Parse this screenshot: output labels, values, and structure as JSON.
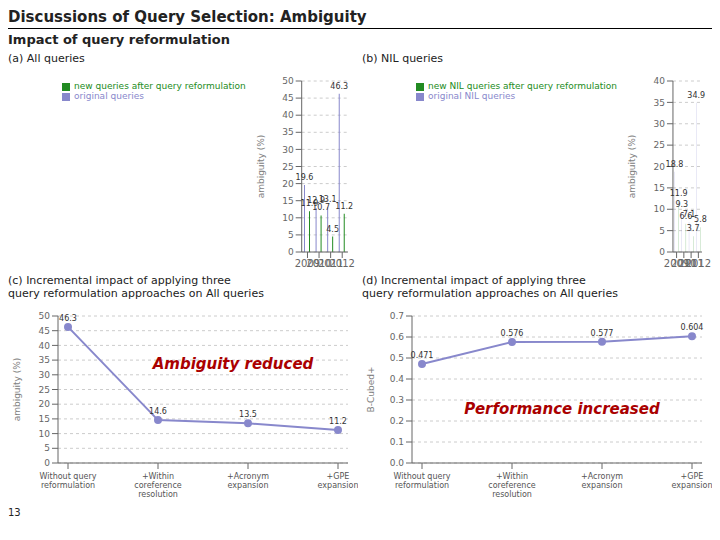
{
  "title": "Discussions of Query Selection: Ambiguity",
  "subtitle": "Impact of query reformulation",
  "annotations": [
    {
      "text": "13"
    }
  ],
  "chart_data": [
    {
      "type": "bar",
      "title": "(a) All queries",
      "categories": [
        "2009",
        "2010",
        "2011",
        "2012"
      ],
      "series": [
        {
          "name": "original queries",
          "color": "#8888CC",
          "values": [
            19.6,
            12.9,
            13.1,
            46.3
          ]
        },
        {
          "name": "new queries after query reformulation",
          "color": "#228B22",
          "values": [
            11.9,
            10.7,
            4.5,
            11.2
          ]
        }
      ],
      "y_label": "ambiguity (%)",
      "ylim": [
        0,
        50
      ],
      "yticks": [
        0,
        5,
        10,
        15,
        20,
        25,
        30,
        35,
        40,
        45,
        50
      ],
      "grid": true,
      "legend": "upper left",
      "data_labels": true
    },
    {
      "type": "bar",
      "title": "(b) NIL queries",
      "categories": [
        "2009",
        "2010",
        "2011",
        "2012"
      ],
      "series": [
        {
          "name": "original NIL queries",
          "color": "#8888CC",
          "values": [
            18.8,
            9.3,
            7.1,
            34.9
          ]
        },
        {
          "name": "new NIL queries after query reformulation",
          "color": "#228B22",
          "values": [
            11.9,
            6.6,
            3.7,
            5.8
          ]
        }
      ],
      "y_label": "ambiguity (%)",
      "ylim": [
        0,
        40
      ],
      "yticks": [
        0,
        5,
        10,
        15,
        20,
        25,
        30,
        35,
        40
      ],
      "grid": true,
      "legend": "upper left",
      "data_labels": true
    },
    {
      "type": "line",
      "title": "(c) Incremental impact of applying three\nquery reformulation approaches on All queries",
      "categories": [
        "Without query\nreformulation",
        "+Within\ncoreference\nresolution",
        "+Acronym\nexpansion",
        "+GPE\nexpansion"
      ],
      "values": [
        46.3,
        14.6,
        13.5,
        11.2
      ],
      "color": "#8888CC",
      "marker": "circle",
      "y_label": "ambiguity (%)",
      "ylim": [
        0,
        50
      ],
      "yticks": [
        0,
        5,
        10,
        15,
        20,
        25,
        30,
        35,
        40,
        45,
        50
      ],
      "grid": true,
      "data_labels": true,
      "annotations": [
        {
          "text": "Ambiguity reduced",
          "color": "#AA0000"
        }
      ]
    },
    {
      "type": "line",
      "title": "(d) Incremental impact of applying three\nquery reformulation approaches on All queries",
      "categories": [
        "Without query\nreformulation",
        "+Within\ncoreference\nresolution",
        "+Acronym\nexpansion",
        "+GPE\nexpansion"
      ],
      "values": [
        0.471,
        0.576,
        0.577,
        0.604
      ],
      "color": "#8888CC",
      "marker": "circle",
      "y_label": "B-Cubed+",
      "ylim": [
        0,
        0.7
      ],
      "yticks": [
        {
          "value": 0,
          "label": "0.0"
        },
        0.1,
        0.2,
        0.3,
        0.4,
        0.5,
        0.6,
        0.7
      ],
      "grid": true,
      "data_labels": true,
      "annotations": [
        {
          "text": "Performance increased",
          "color": "#AA0000"
        }
      ]
    }
  ]
}
